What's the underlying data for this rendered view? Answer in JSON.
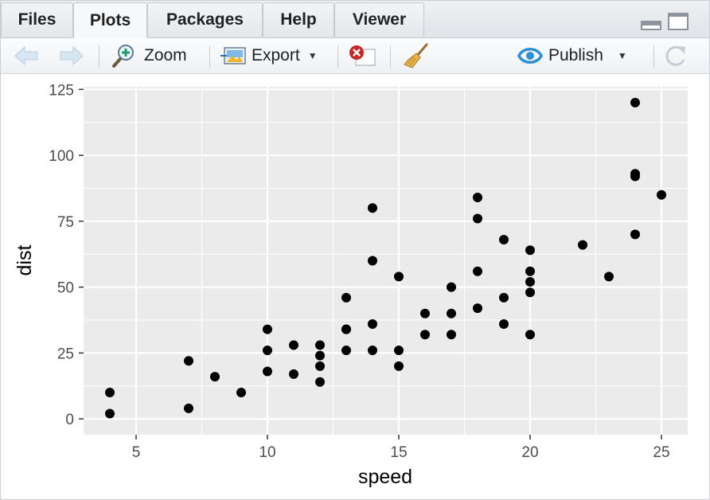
{
  "tabs": [
    {
      "label": "Files",
      "active": false
    },
    {
      "label": "Plots",
      "active": true
    },
    {
      "label": "Packages",
      "active": false
    },
    {
      "label": "Help",
      "active": false
    },
    {
      "label": "Viewer",
      "active": false
    }
  ],
  "toolbar": {
    "back_icon": "arrow-left-icon",
    "forward_icon": "arrow-right-icon",
    "zoom_label": "Zoom",
    "zoom_icon": "magnifier-plus-icon",
    "export_label": "Export",
    "export_icon": "image-export-icon",
    "remove_icon": "remove-plot-icon",
    "clear_icon": "broom-icon",
    "publish_label": "Publish",
    "publish_icon": "publish-icon",
    "refresh_icon": "refresh-icon"
  },
  "colors": {
    "panel_background": "#ebebeb",
    "grid": "#ffffff",
    "point": "#000000",
    "tick_text": "#4d4d4d",
    "publish_accent": "#2d8fd6",
    "remove_red": "#c62828"
  },
  "chart_data": {
    "type": "scatter",
    "xlabel": "speed",
    "ylabel": "dist",
    "xlim": [
      3,
      26
    ],
    "ylim": [
      -6,
      126
    ],
    "x_ticks": [
      5,
      10,
      15,
      20,
      25
    ],
    "y_ticks": [
      0,
      25,
      50,
      75,
      100,
      125
    ],
    "grid": true,
    "legend": "none",
    "points": [
      [
        4,
        2
      ],
      [
        4,
        10
      ],
      [
        7,
        4
      ],
      [
        7,
        22
      ],
      [
        8,
        16
      ],
      [
        9,
        10
      ],
      [
        10,
        18
      ],
      [
        10,
        26
      ],
      [
        10,
        34
      ],
      [
        11,
        17
      ],
      [
        11,
        28
      ],
      [
        12,
        14
      ],
      [
        12,
        20
      ],
      [
        12,
        24
      ],
      [
        12,
        28
      ],
      [
        13,
        26
      ],
      [
        13,
        34
      ],
      [
        13,
        34
      ],
      [
        13,
        46
      ],
      [
        14,
        26
      ],
      [
        14,
        36
      ],
      [
        14,
        60
      ],
      [
        14,
        80
      ],
      [
        15,
        20
      ],
      [
        15,
        26
      ],
      [
        15,
        54
      ],
      [
        16,
        32
      ],
      [
        16,
        40
      ],
      [
        17,
        32
      ],
      [
        17,
        40
      ],
      [
        17,
        50
      ],
      [
        18,
        42
      ],
      [
        18,
        56
      ],
      [
        18,
        76
      ],
      [
        18,
        84
      ],
      [
        19,
        36
      ],
      [
        19,
        46
      ],
      [
        19,
        68
      ],
      [
        20,
        32
      ],
      [
        20,
        48
      ],
      [
        20,
        52
      ],
      [
        20,
        56
      ],
      [
        20,
        64
      ],
      [
        22,
        66
      ],
      [
        23,
        54
      ],
      [
        24,
        70
      ],
      [
        24,
        92
      ],
      [
        24,
        93
      ],
      [
        24,
        120
      ],
      [
        25,
        85
      ]
    ]
  }
}
